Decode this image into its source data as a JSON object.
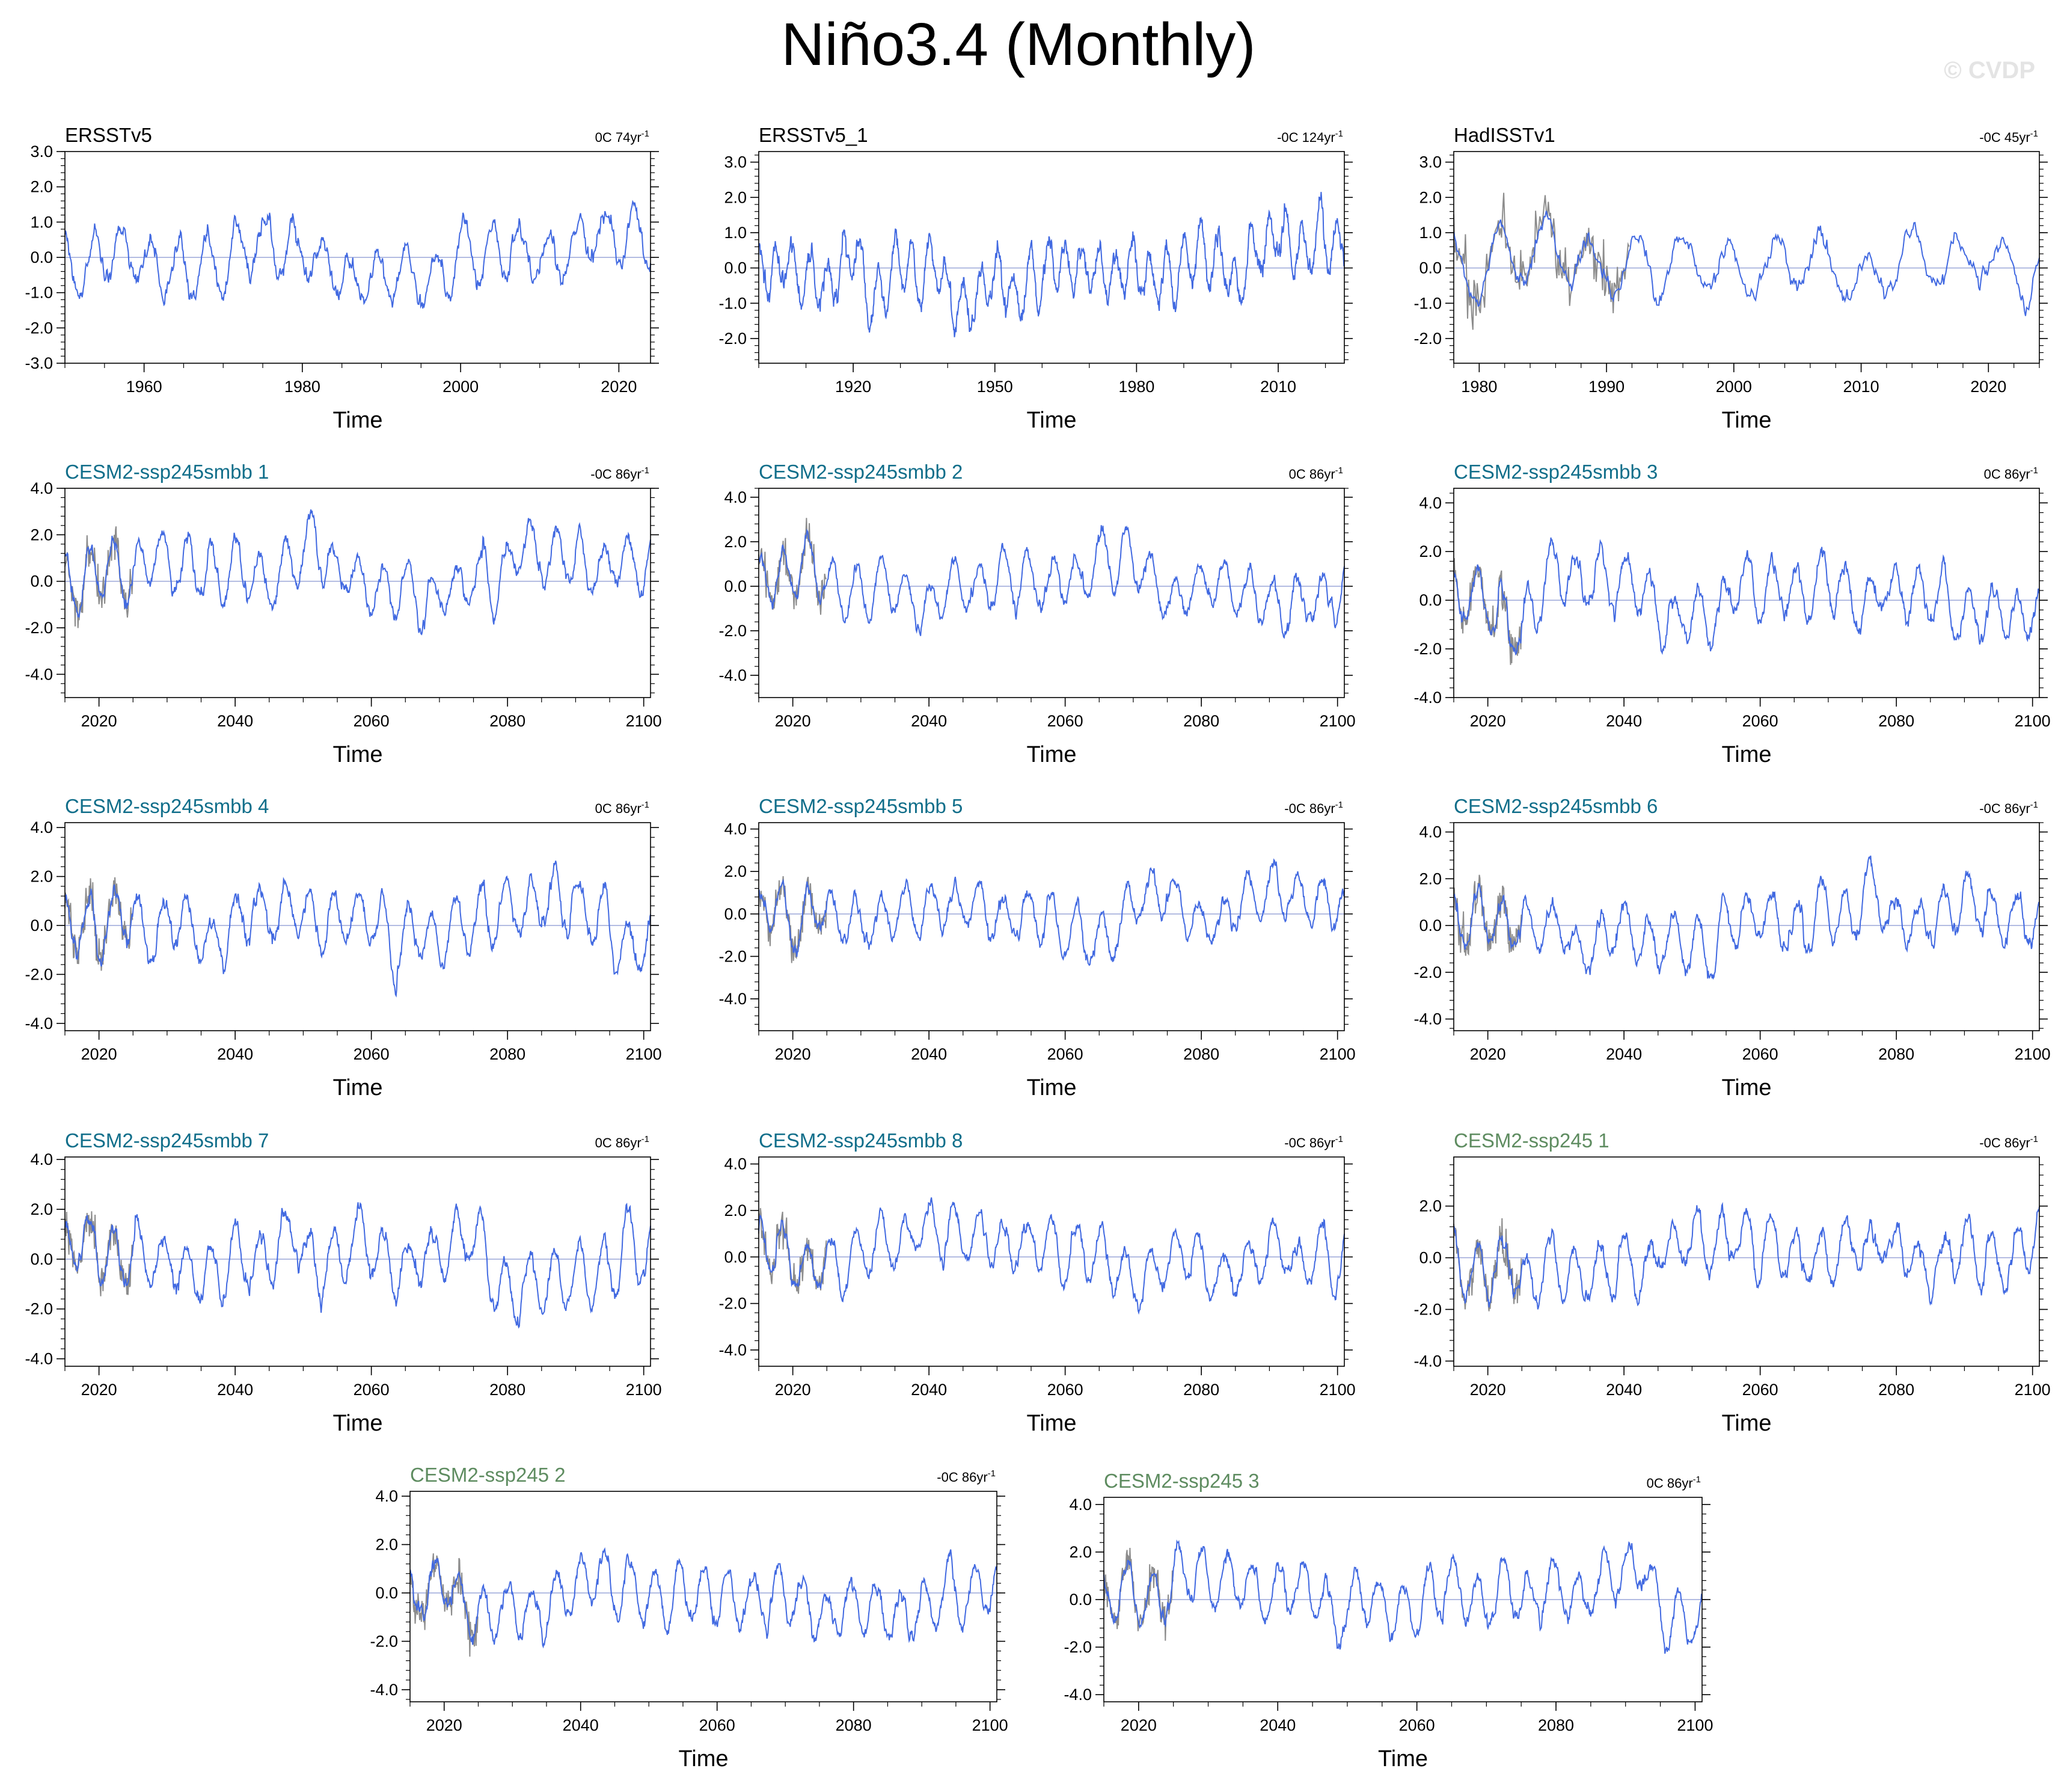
{
  "title": "Niño3.4 (Monthly)",
  "watermark": "© CVDP",
  "colors": {
    "series": "#4169e1",
    "observed_overlay": "#8c8c8c",
    "zero_line": "#9aa6d8",
    "obs_title": "#000000",
    "smbb_title": "#106e8a",
    "ssp245_title": "#5e8c60"
  },
  "chart_data": [
    {
      "type": "line",
      "title": "ERSSTv5",
      "title_kind": "obs",
      "trend_value": "0C 74yr",
      "trend_exp": "-1",
      "xlabel": "Time",
      "xlim": [
        1950,
        2024
      ],
      "ylim": [
        -3,
        3
      ],
      "xticks": [
        "1960",
        "1980",
        "2000",
        "2020"
      ],
      "yticks": [
        "-3.0",
        "-2.0",
        "-1.0",
        "0.0",
        "1.0",
        "2.0",
        "3.0"
      ],
      "overlay": false,
      "seed": 11,
      "amp": 0.9
    },
    {
      "type": "line",
      "title": "ERSSTv5_1",
      "title_kind": "obs",
      "trend_value": "-0C 124yr",
      "trend_exp": "-1",
      "xlabel": "Time",
      "xlim": [
        1900,
        2024
      ],
      "ylim": [
        -2.7,
        3.3
      ],
      "xticks": [
        "1920",
        "1950",
        "1980",
        "2010"
      ],
      "yticks": [
        "-2.0",
        "-1.0",
        "0.0",
        "1.0",
        "2.0",
        "3.0"
      ],
      "overlay": false,
      "seed": 23,
      "amp": 0.85
    },
    {
      "type": "line",
      "title": "HadISSTv1",
      "title_kind": "obs",
      "trend_value": "-0C 45yr",
      "trend_exp": "-1",
      "xlabel": "Time",
      "xlim": [
        1978,
        2024
      ],
      "ylim": [
        -2.7,
        3.3
      ],
      "xticks": [
        "1980",
        "1990",
        "2000",
        "2010",
        "2020"
      ],
      "yticks": [
        "-2.0",
        "-1.0",
        "0.0",
        "1.0",
        "2.0",
        "3.0"
      ],
      "overlay": true,
      "seed": 37,
      "amp": 0.9
    },
    {
      "type": "line",
      "title": "CESM2-ssp245smbb 1",
      "title_kind": "smbb",
      "trend_value": "-0C 86yr",
      "trend_exp": "-1",
      "xlabel": "Time",
      "xlim": [
        2015,
        2101
      ],
      "ylim": [
        -5,
        4
      ],
      "xticks": [
        "2020",
        "2040",
        "2060",
        "2080",
        "2100"
      ],
      "yticks": [
        "-4.0",
        "-2.0",
        "0.0",
        "2.0",
        "4.0"
      ],
      "overlay": true,
      "seed": 41,
      "amp": 1.3
    },
    {
      "type": "line",
      "title": "CESM2-ssp245smbb 2",
      "title_kind": "smbb",
      "trend_value": "0C 86yr",
      "trend_exp": "-1",
      "xlabel": "Time",
      "xlim": [
        2015,
        2101
      ],
      "ylim": [
        -5,
        4.4
      ],
      "xticks": [
        "2020",
        "2040",
        "2060",
        "2080",
        "2100"
      ],
      "yticks": [
        "-4.0",
        "-2.0",
        "0.0",
        "2.0",
        "4.0"
      ],
      "overlay": true,
      "seed": 53,
      "amp": 1.3
    },
    {
      "type": "line",
      "title": "CESM2-ssp245smbb 3",
      "title_kind": "smbb",
      "trend_value": "0C 86yr",
      "trend_exp": "-1",
      "xlabel": "Time",
      "xlim": [
        2015,
        2101
      ],
      "ylim": [
        -4,
        4.6
      ],
      "xticks": [
        "2020",
        "2040",
        "2060",
        "2080",
        "2100"
      ],
      "yticks": [
        "-4.0",
        "-2.0",
        "0.0",
        "2.0",
        "4.0"
      ],
      "overlay": true,
      "seed": 67,
      "amp": 1.3
    },
    {
      "type": "line",
      "title": "CESM2-ssp245smbb 4",
      "title_kind": "smbb",
      "trend_value": "0C 86yr",
      "trend_exp": "-1",
      "xlabel": "Time",
      "xlim": [
        2015,
        2101
      ],
      "ylim": [
        -4.3,
        4.2
      ],
      "xticks": [
        "2020",
        "2040",
        "2060",
        "2080",
        "2100"
      ],
      "yticks": [
        "-4.0",
        "-2.0",
        "0.0",
        "2.0",
        "4.0"
      ],
      "overlay": true,
      "seed": 71,
      "amp": 1.35
    },
    {
      "type": "line",
      "title": "CESM2-ssp245smbb 5",
      "title_kind": "smbb",
      "trend_value": "-0C 86yr",
      "trend_exp": "-1",
      "xlabel": "Time",
      "xlim": [
        2015,
        2101
      ],
      "ylim": [
        -5.5,
        4.3
      ],
      "xticks": [
        "2020",
        "2040",
        "2060",
        "2080",
        "2100"
      ],
      "yticks": [
        "-4.0",
        "-2.0",
        "0.0",
        "2.0",
        "4.0"
      ],
      "overlay": true,
      "seed": 83,
      "amp": 1.3
    },
    {
      "type": "line",
      "title": "CESM2-ssp245smbb 6",
      "title_kind": "smbb",
      "trend_value": "-0C 86yr",
      "trend_exp": "-1",
      "xlabel": "Time",
      "xlim": [
        2015,
        2101
      ],
      "ylim": [
        -4.5,
        4.4
      ],
      "xticks": [
        "2020",
        "2040",
        "2060",
        "2080",
        "2100"
      ],
      "yticks": [
        "-4.0",
        "-2.0",
        "0.0",
        "2.0",
        "4.0"
      ],
      "overlay": true,
      "seed": 97,
      "amp": 1.3
    },
    {
      "type": "line",
      "title": "CESM2-ssp245smbb 7",
      "title_kind": "smbb",
      "trend_value": "0C 86yr",
      "trend_exp": "-1",
      "xlabel": "Time",
      "xlim": [
        2015,
        2101
      ],
      "ylim": [
        -4.3,
        4.1
      ],
      "xticks": [
        "2020",
        "2040",
        "2060",
        "2080",
        "2100"
      ],
      "yticks": [
        "-4.0",
        "-2.0",
        "0.0",
        "2.0",
        "4.0"
      ],
      "overlay": true,
      "seed": 101,
      "amp": 1.35
    },
    {
      "type": "line",
      "title": "CESM2-ssp245smbb 8",
      "title_kind": "smbb",
      "trend_value": "-0C 86yr",
      "trend_exp": "-1",
      "xlabel": "Time",
      "xlim": [
        2015,
        2101
      ],
      "ylim": [
        -4.7,
        4.3
      ],
      "xticks": [
        "2020",
        "2040",
        "2060",
        "2080",
        "2100"
      ],
      "yticks": [
        "-4.0",
        "-2.0",
        "0.0",
        "2.0",
        "4.0"
      ],
      "overlay": true,
      "seed": 113,
      "amp": 1.3
    },
    {
      "type": "line",
      "title": "CESM2-ssp245 1",
      "title_kind": "ssp245",
      "trend_value": "-0C 86yr",
      "trend_exp": "-1",
      "xlabel": "Time",
      "xlim": [
        2015,
        2101
      ],
      "ylim": [
        -4.2,
        3.9
      ],
      "xticks": [
        "2020",
        "2040",
        "2060",
        "2080",
        "2100"
      ],
      "yticks": [
        "-4.0",
        "-2.0",
        "0.0",
        "2.0"
      ],
      "overlay": true,
      "seed": 127,
      "amp": 1.25
    },
    {
      "type": "line",
      "title": "CESM2-ssp245 2",
      "title_kind": "ssp245",
      "trend_value": "-0C 86yr",
      "trend_exp": "-1",
      "xlabel": "Time",
      "xlim": [
        2015,
        2101
      ],
      "ylim": [
        -4.5,
        4.2
      ],
      "xticks": [
        "2020",
        "2040",
        "2060",
        "2080",
        "2100"
      ],
      "yticks": [
        "-4.0",
        "-2.0",
        "0.0",
        "2.0",
        "4.0"
      ],
      "overlay": true,
      "seed": 131,
      "amp": 1.3
    },
    {
      "type": "line",
      "title": "CESM2-ssp245 3",
      "title_kind": "ssp245",
      "trend_value": "0C 86yr",
      "trend_exp": "-1",
      "xlabel": "Time",
      "xlim": [
        2015,
        2101
      ],
      "ylim": [
        -4.3,
        4.3
      ],
      "xticks": [
        "2020",
        "2040",
        "2060",
        "2080",
        "2100"
      ],
      "yticks": [
        "-4.0",
        "-2.0",
        "0.0",
        "2.0",
        "4.0"
      ],
      "overlay": true,
      "seed": 149,
      "amp": 1.3
    }
  ]
}
